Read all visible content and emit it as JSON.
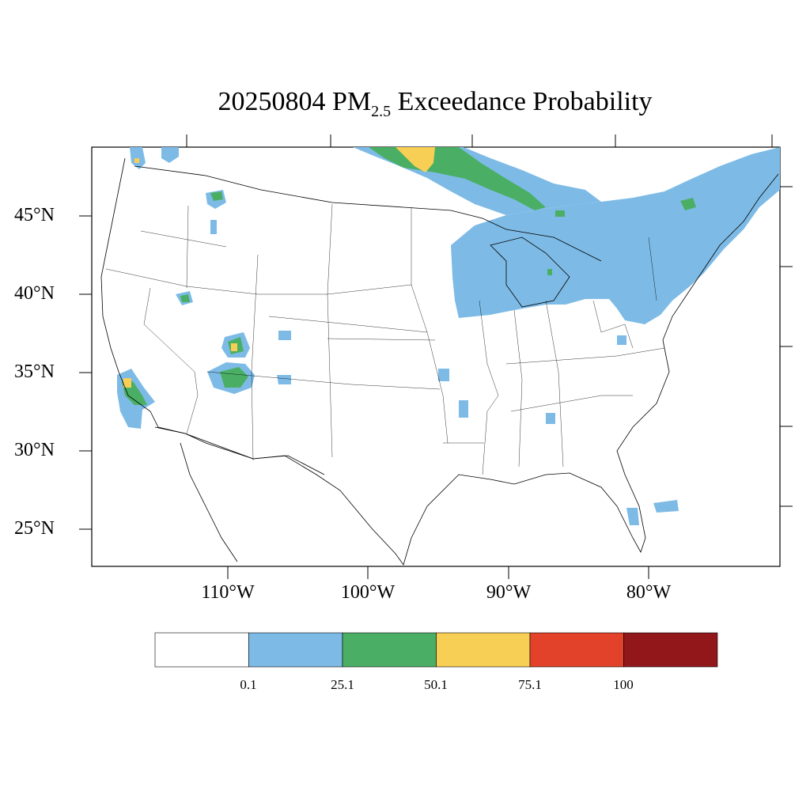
{
  "title": {
    "date": "20250804",
    "pollutant": "PM",
    "pollutant_sub": "2.5",
    "suffix": "Exceedance Probability"
  },
  "map": {
    "lat_labels": [
      "45°N",
      "40°N",
      "35°N",
      "30°N",
      "25°N"
    ],
    "lon_labels": [
      "110°W",
      "100°W",
      "90°W",
      "80°W"
    ]
  },
  "colorbar": {
    "colors": [
      "#ffffff",
      "#7dbbe6",
      "#4aaf65",
      "#f8cf55",
      "#e24229",
      "#92171b"
    ],
    "labels": [
      "0.1",
      "25.1",
      "50.1",
      "75.1",
      "100"
    ]
  },
  "legend": {
    "low_color": "#7dbbe6",
    "mid_color": "#4aaf65",
    "high_color": "#f8cf55"
  }
}
